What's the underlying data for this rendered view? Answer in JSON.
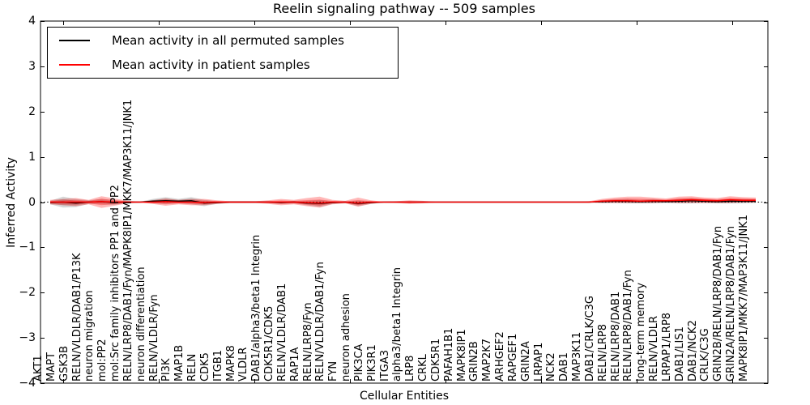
{
  "title": "Reelin signaling pathway -- 509 samples",
  "axes": {
    "ylabel": "Inferred Activity",
    "xlabel": "Cellular Entities",
    "ytick_labels": [
      "4",
      "3",
      "2",
      "1",
      "0",
      "−1",
      "−2",
      "−3",
      "−4"
    ],
    "yticks": [
      4,
      3,
      2,
      1,
      0,
      -1,
      -2,
      -3,
      -4
    ]
  },
  "chart_data": {
    "type": "line",
    "title": "Reelin signaling pathway -- 509 samples",
    "xlabel": "Cellular Entities",
    "ylabel": "Inferred Activity",
    "ylim": [
      -4,
      4
    ],
    "grid": false,
    "legend_position": "upper left",
    "zero_line": "dotted black at y=0",
    "categories": [
      "AKT1",
      "MAPT",
      "GSK3B",
      "RELN/VLDLR/DAB1/P13K",
      "neuron migration",
      "mol:PP2",
      "mol:Src family inhibitors PP1 and PP2",
      "RELN/LRP8/DAB1/Fyn/MAPK8IP1/MKK7/MAP3K11/JNK1",
      "neuron differentiation",
      "RELN/VLDLR/Fyn",
      "PI3K",
      "MAP1B",
      "RELN",
      "CDK5",
      "ITGB1",
      "MAPK8",
      "VLDLR",
      "DAB1/alpha3/beta1 Integrin",
      "CDK5R1/CDK5",
      "RELN/VLDLR/DAB1",
      "RAP1A",
      "RELN/LRP8/Fyn",
      "RELN/VLDLR/DAB1/Fyn",
      "FYN",
      "neuron adhesion",
      "PIK3CA",
      "PIK3R1",
      "ITGA3",
      "alpha3/beta1 Integrin",
      "LRP8",
      "CRKL",
      "CDK5R1",
      "PAFAH1B1",
      "MAPK8IP1",
      "GRIN2B",
      "MAP2K7",
      "ARHGEF2",
      "RAPGEF1",
      "GRIN2A",
      "LRPAP1",
      "NCK2",
      "DAB1",
      "MAP3K11",
      "DAB1/CRLK/C3G",
      "RELN/LRP8",
      "RELN/LRP8/DAB1",
      "RELN/LRP8/DAB1/Fyn",
      "long-term memory",
      "RELN/VLDLR",
      "LRPAP1/LRP8",
      "DAB1/LIS1",
      "DAB1/NCK2",
      "CRLK/C3G",
      "GRIN2B/RELN/LRP8/DAB1/Fyn",
      "GRIN2A/RELN/LRP8/DAB1/Fyn",
      "MAPK8IP1/MKK7/MAP3K11/JNK1"
    ],
    "series": [
      {
        "name": "Mean activity in all permuted samples",
        "color": "#000000",
        "band_color": "rgba(0,0,0,0.16)",
        "values": [
          -0.01,
          0.0,
          -0.02,
          0.0,
          0.01,
          -0.01,
          0.0,
          0.0,
          0.02,
          0.03,
          0.02,
          0.03,
          -0.02,
          -0.01,
          0.0,
          0.0,
          0.0,
          0.0,
          -0.01,
          0.0,
          -0.02,
          -0.03,
          -0.01,
          0.0,
          -0.03,
          -0.01,
          0.0,
          0.0,
          0.0,
          0.0,
          0.0,
          0.0,
          0.0,
          0.0,
          0.0,
          0.0,
          0.0,
          0.0,
          0.0,
          0.0,
          0.0,
          0.0,
          0.0,
          0.01,
          0.02,
          0.02,
          0.01,
          0.02,
          0.01,
          0.02,
          0.03,
          0.02,
          0.01,
          0.02,
          0.02,
          0.02
        ],
        "band_halfwidth": [
          0.04,
          0.12,
          0.09,
          0.04,
          0.06,
          0.05,
          0.02,
          0.01,
          0.05,
          0.08,
          0.05,
          0.08,
          0.07,
          0.03,
          0.02,
          0.02,
          0.02,
          0.02,
          0.03,
          0.03,
          0.05,
          0.08,
          0.03,
          0.02,
          0.06,
          0.03,
          0.01,
          0.01,
          0.02,
          0.02,
          0.01,
          0.01,
          0.01,
          0.01,
          0.01,
          0.01,
          0.01,
          0.01,
          0.01,
          0.01,
          0.01,
          0.01,
          0.01,
          0.03,
          0.04,
          0.05,
          0.04,
          0.05,
          0.03,
          0.05,
          0.06,
          0.04,
          0.04,
          0.05,
          0.05,
          0.04
        ]
      },
      {
        "name": "Mean activity in patient samples",
        "color": "#ff0000",
        "band_color": "rgba(255,0,0,0.28)",
        "values": [
          0.0,
          0.0,
          0.0,
          0.0,
          0.01,
          0.0,
          0.0,
          0.0,
          0.0,
          0.01,
          0.0,
          0.0,
          -0.01,
          0.0,
          0.0,
          0.0,
          0.0,
          0.0,
          0.0,
          0.0,
          -0.01,
          -0.02,
          0.0,
          0.0,
          -0.02,
          0.0,
          0.0,
          0.0,
          0.0,
          0.0,
          0.0,
          0.0,
          0.0,
          0.0,
          0.0,
          0.0,
          0.0,
          0.0,
          0.0,
          0.0,
          0.0,
          0.0,
          0.0,
          0.02,
          0.03,
          0.03,
          0.02,
          0.03,
          0.03,
          0.04,
          0.05,
          0.04,
          0.03,
          0.05,
          0.04,
          0.04
        ],
        "band_low": [
          -0.05,
          -0.07,
          -0.09,
          -0.05,
          -0.13,
          -0.08,
          -0.03,
          -0.01,
          -0.04,
          -0.08,
          -0.05,
          -0.07,
          -0.07,
          -0.04,
          -0.02,
          -0.02,
          -0.02,
          -0.04,
          -0.07,
          -0.05,
          -0.09,
          -0.12,
          -0.05,
          -0.03,
          -0.1,
          -0.04,
          -0.01,
          -0.02,
          -0.04,
          -0.03,
          -0.01,
          -0.01,
          -0.01,
          -0.01,
          -0.01,
          -0.01,
          -0.01,
          -0.01,
          -0.01,
          -0.01,
          -0.01,
          -0.01,
          -0.01,
          -0.02,
          -0.02,
          -0.02,
          -0.02,
          -0.02,
          -0.01,
          -0.02,
          -0.02,
          -0.02,
          -0.02,
          -0.02,
          -0.01,
          -0.01
        ],
        "band_high": [
          0.05,
          0.07,
          0.09,
          0.05,
          0.13,
          0.08,
          0.03,
          0.01,
          0.04,
          0.08,
          0.05,
          0.07,
          0.07,
          0.04,
          0.02,
          0.02,
          0.02,
          0.04,
          0.07,
          0.05,
          0.09,
          0.12,
          0.05,
          0.03,
          0.1,
          0.04,
          0.01,
          0.02,
          0.04,
          0.03,
          0.01,
          0.01,
          0.01,
          0.01,
          0.01,
          0.01,
          0.01,
          0.01,
          0.01,
          0.01,
          0.01,
          0.01,
          0.02,
          0.07,
          0.1,
          0.12,
          0.12,
          0.1,
          0.08,
          0.12,
          0.13,
          0.1,
          0.09,
          0.13,
          0.11,
          0.1
        ]
      }
    ]
  }
}
